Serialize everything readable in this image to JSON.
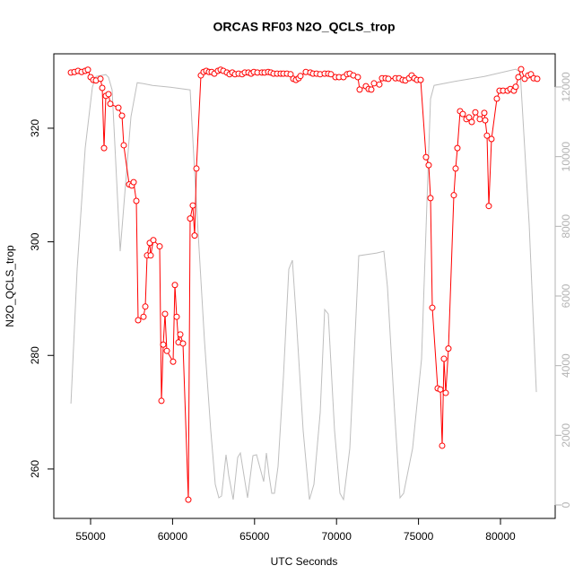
{
  "chart_data": {
    "type": "line",
    "title": "ORCAS RF03 N2O_QCLS_trop",
    "x_label": "UTC Seconds",
    "y_label": "N2O_QCLS_trop",
    "xlim": [
      52757,
      83337
    ],
    "ylim": [
      251.3,
      333.1
    ],
    "y2lim": [
      -386,
      12952
    ],
    "xticks": [
      55000,
      60000,
      65000,
      70000,
      75000,
      80000
    ],
    "yticks": [
      260,
      280,
      300,
      320
    ],
    "y2ticks": [
      0,
      2000,
      4000,
      6000,
      8000,
      10000,
      12000
    ],
    "series": [
      {
        "color": "#bebebe",
        "axis": "y2",
        "markers": false,
        "x": [
          53800,
          54180,
          54672,
          55109,
          55328,
          55602,
          55930,
          56094,
          56313,
          56587,
          56805,
          57024,
          57462,
          57845,
          58227,
          58774,
          59868,
          61072,
          61400,
          61947,
          62330,
          62603,
          62822,
          62986,
          63260,
          63424,
          63697,
          63971,
          64135,
          64354,
          64573,
          64901,
          65120,
          65338,
          65557,
          65721,
          65885,
          66049,
          66214,
          66432,
          66761,
          67089,
          67307,
          67526,
          67964,
          68347,
          68620,
          69003,
          69277,
          69496,
          69879,
          70207,
          70425,
          70808,
          71191,
          71355,
          72449,
          72887,
          73106,
          73543,
          73872,
          74090,
          74637,
          75184,
          75731,
          75950,
          77372,
          79013,
          80928,
          81201,
          81748,
          82186
        ],
        "values": [
          2909,
          6770,
          10245,
          11995,
          12304,
          12329,
          12355,
          12278,
          11918,
          9344,
          7284,
          8571,
          11145,
          12124,
          12098,
          12046,
          11995,
          11918,
          9086,
          4710,
          2136,
          592,
          206,
          257,
          1441,
          849,
          154,
          1364,
          1493,
          849,
          206,
          1416,
          1441,
          1055,
          669,
          1493,
          849,
          335,
          335,
          1107,
          3681,
          6770,
          7027,
          5483,
          2136,
          154,
          592,
          2651,
          5611,
          5483,
          2136,
          335,
          154,
          1622,
          5483,
          7156,
          7233,
          7284,
          6255,
          2651,
          206,
          335,
          1622,
          4196,
          11660,
          12046,
          12175,
          12304,
          12510,
          12432,
          8057,
          3243
        ]
      },
      {
        "color": "#ff0000",
        "axis": "y",
        "markers": true,
        "x": [
          53800,
          54015,
          54234,
          54453,
          54672,
          54836,
          55000,
          55164,
          55328,
          55602,
          55711,
          55821,
          55930,
          56094,
          56203,
          56696,
          56915,
          57024,
          57352,
          57516,
          57626,
          57790,
          57899,
          58227,
          58337,
          58446,
          58610,
          58665,
          58829,
          59212,
          59321,
          59431,
          59540,
          59650,
          60032,
          60142,
          60251,
          60361,
          60470,
          60634,
          60962,
          61072,
          61236,
          61345,
          61455,
          61728,
          61892,
          62056,
          62220,
          62385,
          62549,
          62767,
          62932,
          63096,
          63314,
          63479,
          63643,
          63807,
          64026,
          64244,
          64408,
          64627,
          64791,
          64955,
          65174,
          65448,
          65612,
          65831,
          65995,
          66159,
          66378,
          66596,
          66761,
          66979,
          67198,
          67362,
          67526,
          67690,
          67800,
          68128,
          68402,
          68566,
          68784,
          69003,
          69277,
          69496,
          69660,
          69933,
          70152,
          70425,
          70644,
          70808,
          71027,
          71301,
          71410,
          71793,
          71957,
          72121,
          72285,
          72613,
          72777,
          72996,
          73160,
          73598,
          73817,
          74036,
          74200,
          74419,
          74583,
          74747,
          74911,
          75130,
          75458,
          75622,
          75731,
          75841,
          76169,
          76333,
          76442,
          76552,
          76661,
          76825,
          77154,
          77263,
          77372,
          77536,
          77701,
          77919,
          78083,
          78248,
          78466,
          78740,
          79013,
          79068,
          79177,
          79287,
          79451,
          79779,
          79943,
          80162,
          80436,
          80600,
          80818,
          80928,
          81092,
          81256,
          81475,
          81694,
          81858,
          82022,
          82241
        ],
        "values": [
          329.8,
          329.9,
          330.1,
          329.9,
          330.1,
          330.3,
          329.0,
          328.5,
          328.4,
          328.7,
          327.1,
          316.5,
          325.7,
          326.0,
          324.3,
          323.6,
          322.2,
          317.0,
          310.1,
          309.9,
          310.5,
          307.2,
          286.2,
          286.8,
          288.6,
          297.6,
          299.8,
          297.6,
          300.3,
          299.2,
          272.0,
          281.9,
          287.3,
          280.8,
          278.9,
          292.4,
          286.8,
          282.3,
          283.7,
          282.1,
          254.6,
          304.1,
          306.4,
          301.1,
          312.9,
          329.3,
          329.9,
          330.1,
          329.9,
          329.9,
          329.6,
          330.1,
          330.3,
          330.1,
          329.8,
          329.5,
          329.8,
          329.5,
          329.6,
          329.5,
          329.8,
          329.8,
          329.6,
          329.9,
          329.8,
          329.8,
          329.8,
          329.9,
          329.8,
          329.6,
          329.6,
          329.6,
          329.6,
          329.6,
          329.5,
          328.7,
          328.5,
          328.8,
          329.2,
          329.9,
          329.8,
          329.6,
          329.6,
          329.5,
          329.6,
          329.6,
          329.5,
          329.0,
          329.0,
          329.0,
          329.5,
          329.6,
          329.3,
          329.0,
          326.8,
          327.4,
          326.9,
          326.8,
          327.9,
          327.7,
          328.8,
          328.8,
          328.7,
          328.8,
          328.8,
          328.5,
          328.4,
          328.8,
          329.3,
          328.8,
          328.5,
          328.5,
          314.9,
          313.5,
          307.7,
          288.4,
          274.2,
          274.0,
          264.1,
          279.4,
          273.4,
          281.2,
          308.2,
          312.9,
          316.5,
          323.0,
          322.5,
          321.6,
          321.9,
          321.1,
          322.8,
          321.6,
          322.7,
          321.4,
          318.7,
          306.3,
          318.1,
          325.2,
          326.6,
          326.6,
          326.6,
          326.9,
          326.6,
          327.3,
          329.0,
          330.4,
          328.7,
          329.3,
          329.5,
          328.8,
          328.7
        ]
      }
    ]
  }
}
